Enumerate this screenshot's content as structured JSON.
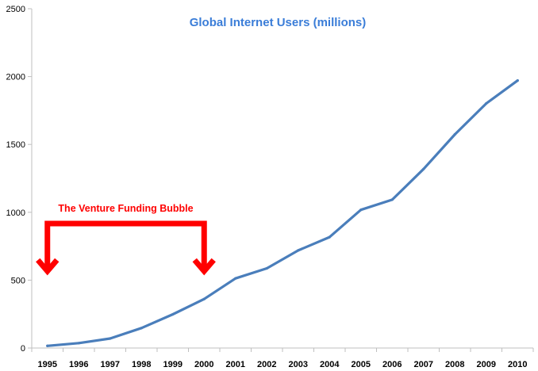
{
  "chart_data": {
    "type": "line",
    "title": "Global Internet Users (millions)",
    "xlabel": "",
    "ylabel": "",
    "x": [
      "1995",
      "1996",
      "1997",
      "1998",
      "1999",
      "2000",
      "2001",
      "2002",
      "2003",
      "2004",
      "2005",
      "2006",
      "2007",
      "2008",
      "2009",
      "2010"
    ],
    "series": [
      {
        "values": [
          16,
          36,
          70,
          147,
          248,
          361,
          513,
          587,
          719,
          817,
          1018,
          1093,
          1319,
          1574,
          1802,
          1971
        ]
      }
    ],
    "ylim": [
      0,
      2500
    ],
    "yticks": [
      0,
      500,
      1000,
      1500,
      2000,
      2500
    ],
    "grid": false,
    "annotation": {
      "text": "The Venture Funding Bubble",
      "from": "1995",
      "to": "2000"
    }
  },
  "colors": {
    "line": "#4a7ebb",
    "title": "#3a7dd8",
    "annotation": "#ff0000",
    "axis": "#bfbfbf"
  }
}
